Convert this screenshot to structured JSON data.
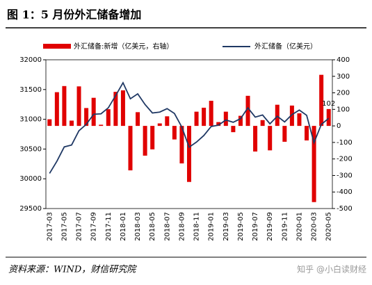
{
  "title": "图 1：5 月份外汇储备增加",
  "source": "资料来源：WIND，财信研究院",
  "watermark": "知乎 @小白读财经",
  "chart_data": {
    "type": "bar-line",
    "categories": [
      "2017-03",
      null,
      "2017-05",
      null,
      "2017-07",
      null,
      "2017-09",
      null,
      "2017-11",
      null,
      "2018-01",
      null,
      "2018-03",
      null,
      "2018-05",
      null,
      "2018-07",
      null,
      "2018-09",
      null,
      "2018-11",
      null,
      "2019-01",
      null,
      "2019-03",
      null,
      "2019-05",
      null,
      "2019-07",
      null,
      "2019-09",
      null,
      "2019-11",
      null,
      "2020-01",
      null,
      "2020-03",
      null,
      "2020-05"
    ],
    "series": [
      {
        "name": "外汇储备:新增（亿美元，右轴）",
        "type": "bar",
        "axis": "y2",
        "color": "#e00000",
        "values": [
          40,
          204,
          241,
          32,
          239,
          108,
          170,
          7,
          101,
          206,
          215,
          -269,
          83,
          -180,
          -142,
          15,
          58,
          -82,
          -227,
          -339,
          86,
          110,
          152,
          23,
          86,
          -38,
          61,
          182,
          -155,
          35,
          -148,
          128,
          -96,
          123,
          76,
          -88,
          -461,
          309,
          102
        ]
      },
      {
        "name": "外汇储备（亿美元）",
        "type": "line",
        "color": "#1f3864",
        "values": [
          30091,
          30295,
          30536,
          30568,
          30807,
          30915,
          31085,
          31092,
          31193,
          31399,
          31614,
          31345,
          31428,
          31248,
          31106,
          31121,
          31179,
          31097,
          30870,
          30531,
          30617,
          30727,
          30879,
          30902,
          30988,
          30950,
          31010,
          31192,
          31037,
          31072,
          30924,
          31052,
          30956,
          31079,
          31155,
          31067,
          30606,
          30915,
          31017
        ]
      }
    ],
    "ylim": [
      29500,
      32000
    ],
    "yticks": [
      29500,
      30000,
      30500,
      31000,
      31500,
      32000
    ],
    "y2lim": [
      -500,
      400
    ],
    "y2ticks": [
      -500,
      -400,
      -300,
      -200,
      -100,
      0,
      100,
      200,
      300,
      400
    ],
    "labeled_point": 38
  }
}
